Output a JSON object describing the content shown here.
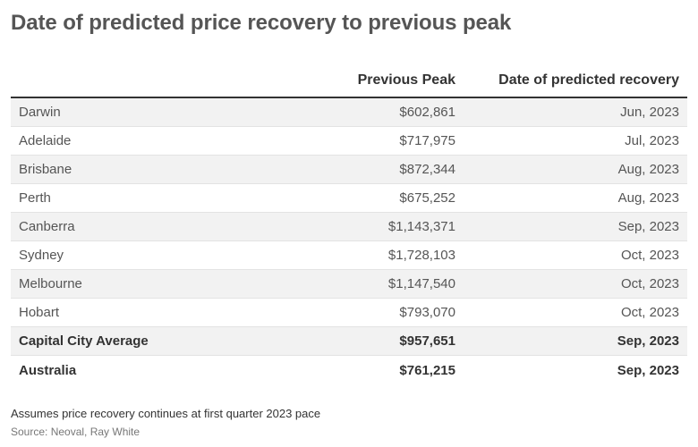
{
  "title": "Date of predicted price recovery to previous peak",
  "chart_data": {
    "type": "table",
    "columns": [
      "",
      "Previous Peak",
      "Date of predicted recovery"
    ],
    "rows": [
      {
        "city": "Darwin",
        "peak": "$602,861",
        "date": "Jun, 2023",
        "bold": false
      },
      {
        "city": "Adelaide",
        "peak": "$717,975",
        "date": "Jul, 2023",
        "bold": false
      },
      {
        "city": "Brisbane",
        "peak": "$872,344",
        "date": "Aug, 2023",
        "bold": false
      },
      {
        "city": "Perth",
        "peak": "$675,252",
        "date": "Aug, 2023",
        "bold": false
      },
      {
        "city": "Canberra",
        "peak": "$1,143,371",
        "date": "Sep, 2023",
        "bold": false
      },
      {
        "city": "Sydney",
        "peak": "$1,728,103",
        "date": "Oct, 2023",
        "bold": false
      },
      {
        "city": "Melbourne",
        "peak": "$1,147,540",
        "date": "Oct, 2023",
        "bold": false
      },
      {
        "city": "Hobart",
        "peak": "$793,070",
        "date": "Oct, 2023",
        "bold": false
      },
      {
        "city": "Capital City Average",
        "peak": "$957,651",
        "date": "Sep, 2023",
        "bold": true
      },
      {
        "city": "Australia",
        "peak": "$761,215",
        "date": "Sep, 2023",
        "bold": true
      }
    ]
  },
  "note": "Assumes price recovery continues at first quarter 2023 pace",
  "source": "Source: Neoval, Ray White",
  "colors": {
    "shaded_row": "#f2f2f2",
    "header_rule": "#333333",
    "row_rule": "#e3e3e3"
  }
}
